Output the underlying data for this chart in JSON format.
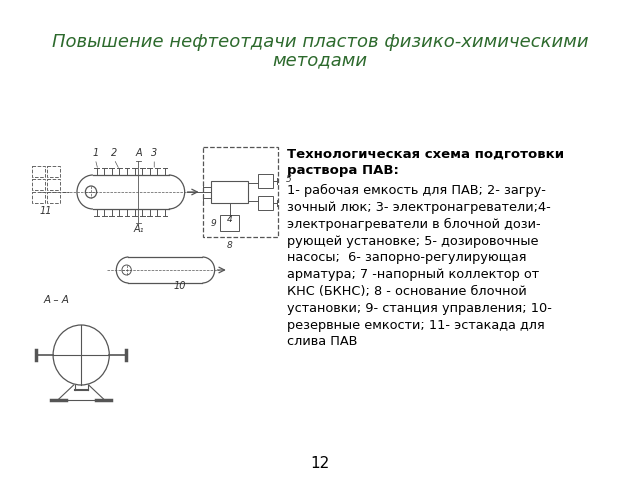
{
  "title_line1": "Повышение нефтеотдачи пластов физико-химическими",
  "title_line2": "методами",
  "title_color": "#2d6a2d",
  "title_fontsize": 13,
  "bold_text": "Технологическая схема подготовки\nраствора ПАВ:",
  "body_text": "1- рабочая емкость для ПАВ; 2- загру-\nзочный люк; 3- электронагреватели;4-\nэлектронагреватели в блочной дози-\nрующей установке; 5- дозировочные\nнасосы;  6- запорно-регулирующая\nарматура; 7 -напорный коллектор от\nКНС (БКНС); 8 - основание блочной\nустановки; 9- станция управления; 10-\nрезервные емкости; 11- эстакада для\nслива ПАВ",
  "page_number": "12",
  "bg_color": "#ffffff",
  "text_color": "#000000"
}
